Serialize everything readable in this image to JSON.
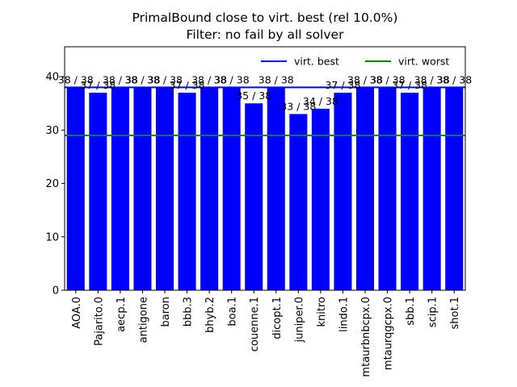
{
  "chart_data": {
    "type": "bar",
    "title": [
      "PrimalBound close to virt. best (rel 10.0%)",
      "Filter: no fail by all solver"
    ],
    "xlabel": "",
    "ylabel": "",
    "categories": [
      "AOA.0",
      "Pajarito.0",
      "aecp.1",
      "antigone",
      "baron",
      "bbb.3",
      "bhyb.2",
      "boa.1",
      "couenne.1",
      "dicopt.1",
      "juniper.0",
      "knitro",
      "lindo.1",
      "mtaurbnbcpx.0",
      "mtaurqgcpx.0",
      "sbb.1",
      "scip.1",
      "shot.1"
    ],
    "values": [
      38,
      37,
      38,
      38,
      38,
      37,
      38,
      38,
      35,
      38,
      33,
      34,
      37,
      38,
      38,
      37,
      38,
      38
    ],
    "data_labels": [
      "38 / 38",
      "37 / 38",
      "38 / 38",
      "38 / 38",
      "38 / 38",
      "37 / 38",
      "38 / 38",
      "38 / 38",
      "35 / 38",
      "38 / 38",
      "33 / 38",
      "34 / 38",
      "37 / 38",
      "38 / 38",
      "38 / 38",
      "37 / 38",
      "38 / 38",
      "38 / 38"
    ],
    "ylim": [
      0,
      45.6
    ],
    "yticks": [
      0,
      10,
      20,
      30,
      40
    ],
    "bar_color": "#0000ff",
    "reference_lines": [
      {
        "name": "virt. best",
        "value": 38,
        "color": "#0000ff"
      },
      {
        "name": "virt. worst",
        "value": 29,
        "color": "#008000"
      }
    ],
    "legend": "top-right",
    "grid": false
  }
}
